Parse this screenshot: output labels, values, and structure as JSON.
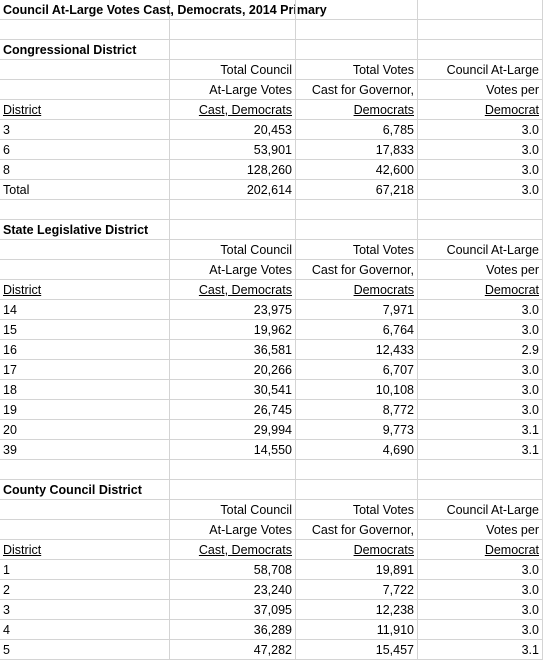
{
  "title": "Council At-Large Votes Cast, Democrats, 2014 Primary",
  "sections": [
    {
      "title": "Congressional District",
      "columns": [
        [
          "Total Council",
          "At-Large Votes",
          "Cast, Democrats"
        ],
        [
          "Total Votes",
          "Cast for Governor,",
          "Democrats"
        ],
        [
          "Council At-Large",
          "Votes per",
          "Democrat"
        ]
      ],
      "district_label": "District",
      "rows": [
        [
          "3",
          "20,453",
          "6,785",
          "3.0"
        ],
        [
          "6",
          "53,901",
          "17,833",
          "3.0"
        ],
        [
          "8",
          "128,260",
          "42,600",
          "3.0"
        ],
        [
          "Total",
          "202,614",
          "67,218",
          "3.0"
        ]
      ]
    },
    {
      "title": "State Legislative District",
      "columns": [
        [
          "Total Council",
          "At-Large Votes",
          "Cast, Democrats"
        ],
        [
          "Total Votes",
          "Cast for Governor,",
          "Democrats"
        ],
        [
          "Council At-Large",
          "Votes per",
          "Democrat"
        ]
      ],
      "district_label": "District",
      "rows": [
        [
          "14",
          "23,975",
          "7,971",
          "3.0"
        ],
        [
          "15",
          "19,962",
          "6,764",
          "3.0"
        ],
        [
          "16",
          "36,581",
          "12,433",
          "2.9"
        ],
        [
          "17",
          "20,266",
          "6,707",
          "3.0"
        ],
        [
          "18",
          "30,541",
          "10,108",
          "3.0"
        ],
        [
          "19",
          "26,745",
          "8,772",
          "3.0"
        ],
        [
          "20",
          "29,994",
          "9,773",
          "3.1"
        ],
        [
          "39",
          "14,550",
          "4,690",
          "3.1"
        ]
      ]
    },
    {
      "title": "County Council District",
      "columns": [
        [
          "Total Council",
          "At-Large Votes",
          "Cast, Democrats"
        ],
        [
          "Total Votes",
          "Cast for Governor,",
          "Democrats"
        ],
        [
          "Council At-Large",
          "Votes per",
          "Democrat"
        ]
      ],
      "district_label": "District",
      "rows": [
        [
          "1",
          "58,708",
          "19,891",
          "3.0"
        ],
        [
          "2",
          "23,240",
          "7,722",
          "3.0"
        ],
        [
          "3",
          "37,095",
          "12,238",
          "3.0"
        ],
        [
          "4",
          "36,289",
          "11,910",
          "3.0"
        ],
        [
          "5",
          "47,282",
          "15,457",
          "3.1"
        ]
      ]
    }
  ]
}
